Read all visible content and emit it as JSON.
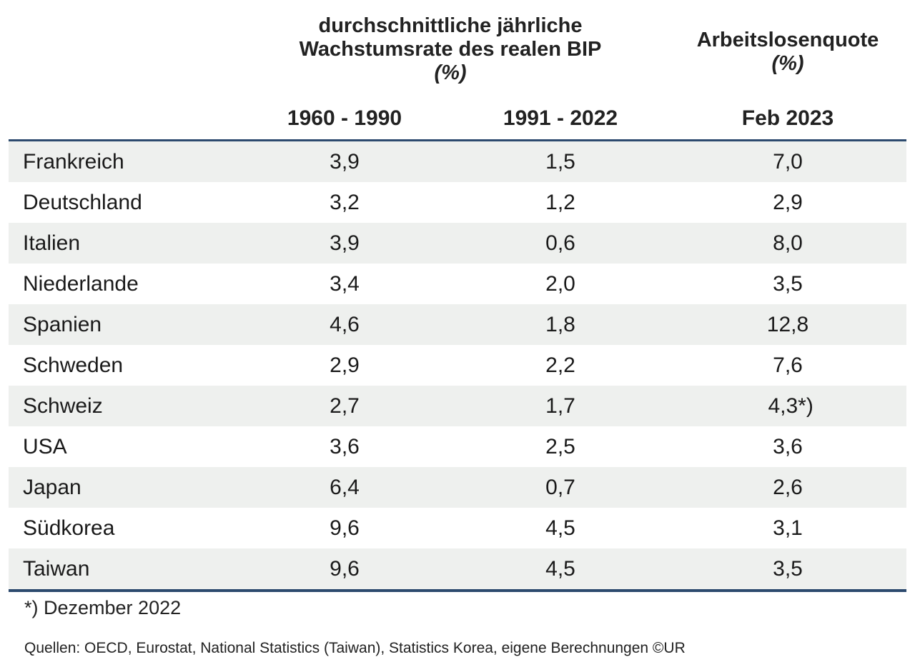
{
  "chart_data": {
    "type": "table",
    "header": {
      "gdp_group_line1": "durchschnittliche jährliche",
      "gdp_group_line2": "Wachstumsrate des realen BIP",
      "gdp_group_unit": "(%)",
      "unemp_group_line1": "Arbeitslosenquote",
      "unemp_group_unit": "(%)"
    },
    "columns": [
      "1960 - 1990",
      "1991 - 2022",
      "Feb 2023"
    ],
    "rows": [
      {
        "country": "Frankreich",
        "v1": "3,9",
        "v2": "1,5",
        "v3": "7,0"
      },
      {
        "country": "Deutschland",
        "v1": "3,2",
        "v2": "1,2",
        "v3": "2,9"
      },
      {
        "country": "Italien",
        "v1": "3,9",
        "v2": "0,6",
        "v3": "8,0"
      },
      {
        "country": "Niederlande",
        "v1": "3,4",
        "v2": "2,0",
        "v3": "3,5"
      },
      {
        "country": "Spanien",
        "v1": "4,6",
        "v2": "1,8",
        "v3": "12,8"
      },
      {
        "country": "Schweden",
        "v1": "2,9",
        "v2": "2,2",
        "v3": "7,6"
      },
      {
        "country": "Schweiz",
        "v1": "2,7",
        "v2": "1,7",
        "v3": " 4,3*)"
      },
      {
        "country": "USA",
        "v1": "3,6",
        "v2": "2,5",
        "v3": "3,6"
      },
      {
        "country": "Japan",
        "v1": "6,4",
        "v2": "0,7",
        "v3": "2,6"
      },
      {
        "country": "Südkorea",
        "v1": "9,6",
        "v2": "4,5",
        "v3": "3,1"
      },
      {
        "country": "Taiwan",
        "v1": "9,6",
        "v2": "4,5",
        "v3": "3,5"
      }
    ],
    "footnote": "*) Dezember 2022",
    "sources": "Quellen: OECD, Eurostat, National Statistics (Taiwan), Statistics Korea, eigene Berechnungen   ©UR"
  }
}
